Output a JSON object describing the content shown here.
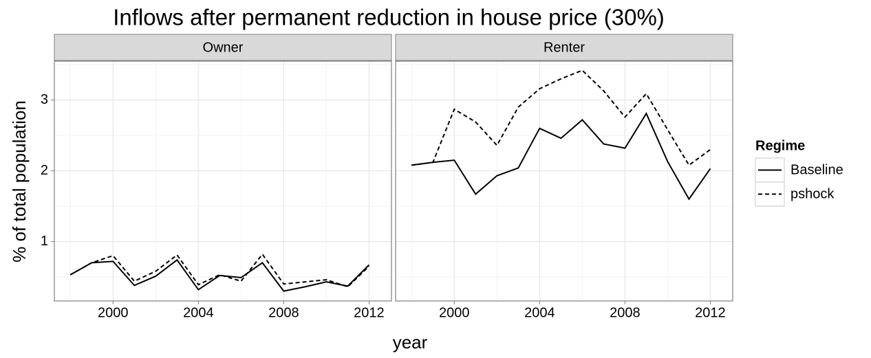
{
  "chart_data": {
    "type": "line",
    "title": "Inflows after permanent reduction in house price (30%)",
    "xlabel": "year",
    "ylabel": "% of total population",
    "legend_title": "Regime",
    "x": [
      1998,
      1999,
      2000,
      2001,
      2002,
      2003,
      2004,
      2005,
      2006,
      2007,
      2008,
      2009,
      2010,
      2011,
      2012
    ],
    "xlim": [
      1997.25,
      2013.05
    ],
    "xticks": [
      2000,
      2004,
      2008,
      2012
    ],
    "ylim": [
      0.16,
      3.55
    ],
    "yticks": [
      1,
      2,
      3
    ],
    "grid": true,
    "facets": [
      {
        "name": "Owner",
        "series": [
          {
            "name": "Baseline",
            "color": "#000000",
            "dash": "solid",
            "values": [
              0.53,
              0.7,
              0.72,
              0.38,
              0.51,
              0.74,
              0.32,
              0.52,
              0.49,
              0.7,
              0.3,
              0.36,
              0.43,
              0.37,
              0.67
            ]
          },
          {
            "name": "pshock",
            "color": "#000000",
            "dash": "dashed",
            "values": [
              0.53,
              0.7,
              0.8,
              0.44,
              0.58,
              0.81,
              0.39,
              0.53,
              0.44,
              0.82,
              0.4,
              0.43,
              0.46,
              0.36,
              0.65
            ]
          }
        ]
      },
      {
        "name": "Renter",
        "series": [
          {
            "name": "Baseline",
            "color": "#000000",
            "dash": "solid",
            "values": [
              2.08,
              2.12,
              2.15,
              1.67,
              1.93,
              2.04,
              2.6,
              2.46,
              2.72,
              2.38,
              2.32,
              2.81,
              2.13,
              1.6,
              2.03
            ]
          },
          {
            "name": "pshock",
            "color": "#000000",
            "dash": "dashed",
            "values": [
              2.08,
              2.12,
              2.87,
              2.69,
              2.36,
              2.9,
              3.16,
              3.3,
              3.42,
              3.13,
              2.76,
              3.09,
              2.58,
              2.08,
              2.3
            ]
          }
        ]
      }
    ]
  }
}
